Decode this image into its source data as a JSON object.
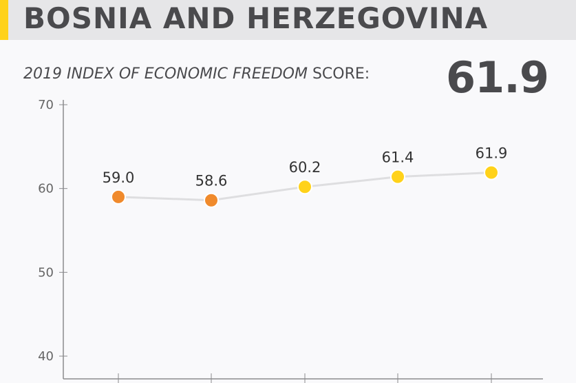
{
  "header": {
    "title": "BOSNIA AND HERZEGOVINA"
  },
  "subtitle": {
    "italic": "2019 INDEX OF ECONOMIC FREEDOM",
    "rest": " SCORE:"
  },
  "score": "61.9",
  "colors": {
    "accent": "#ffd21a",
    "orange": "#f08a2c",
    "yellow": "#ffd21a",
    "line": "#dedee0"
  },
  "chart_data": {
    "type": "line",
    "title": "",
    "xlabel": "",
    "ylabel": "",
    "ylim": [
      40,
      70
    ],
    "yticks": [
      "40",
      "50",
      "60",
      "70"
    ],
    "points": [
      {
        "value": 59.0,
        "label": "59.0",
        "color": "#f08a2c"
      },
      {
        "value": 58.6,
        "label": "58.6",
        "color": "#f08a2c"
      },
      {
        "value": 60.2,
        "label": "60.2",
        "color": "#ffd21a"
      },
      {
        "value": 61.4,
        "label": "61.4",
        "color": "#ffd21a"
      },
      {
        "value": 61.9,
        "label": "61.9",
        "color": "#ffd21a"
      }
    ],
    "grid": false,
    "legend": "none"
  }
}
